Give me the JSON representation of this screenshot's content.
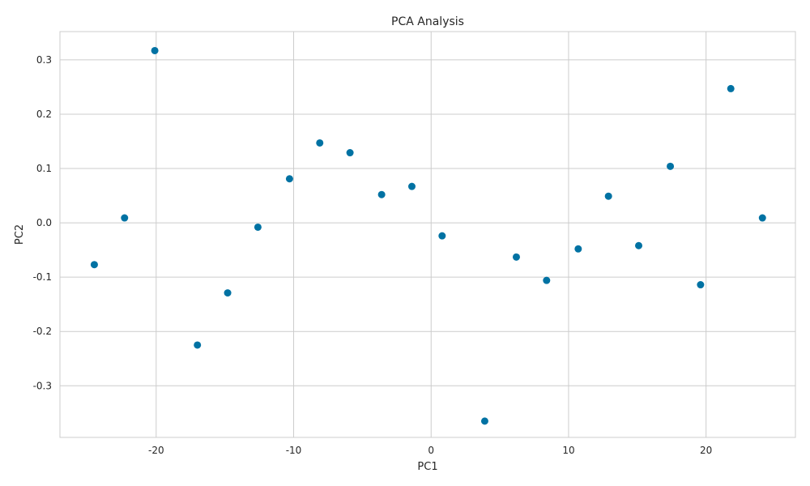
{
  "chart_data": {
    "type": "scatter",
    "title": "PCA Analysis",
    "xlabel": "PC1",
    "ylabel": "PC2",
    "xlim": [
      -27,
      26.5
    ],
    "ylim": [
      -0.395,
      0.352
    ],
    "xticks": [
      -20,
      -10,
      0,
      10,
      20
    ],
    "xtick_labels": [
      "-20",
      "-10",
      "0",
      "10",
      "20"
    ],
    "yticks": [
      -0.3,
      -0.2,
      -0.1,
      0.0,
      0.1,
      0.2,
      0.3
    ],
    "ytick_labels": [
      "-0.3",
      "-0.2",
      "-0.1",
      "0.0",
      "0.1",
      "0.2",
      "0.3"
    ],
    "grid": true,
    "marker_color": "#0072a3",
    "points": [
      {
        "x": -24.5,
        "y": -0.077
      },
      {
        "x": -22.3,
        "y": 0.009
      },
      {
        "x": -20.1,
        "y": 0.317
      },
      {
        "x": -17.0,
        "y": -0.225
      },
      {
        "x": -14.8,
        "y": -0.129
      },
      {
        "x": -12.6,
        "y": -0.008
      },
      {
        "x": -10.3,
        "y": 0.081
      },
      {
        "x": -8.1,
        "y": 0.147
      },
      {
        "x": -5.9,
        "y": 0.129
      },
      {
        "x": -3.6,
        "y": 0.052
      },
      {
        "x": -1.4,
        "y": 0.067
      },
      {
        "x": 0.8,
        "y": -0.024
      },
      {
        "x": 3.9,
        "y": -0.365
      },
      {
        "x": 6.2,
        "y": -0.063
      },
      {
        "x": 8.4,
        "y": -0.106
      },
      {
        "x": 10.7,
        "y": -0.048
      },
      {
        "x": 12.9,
        "y": 0.049
      },
      {
        "x": 15.1,
        "y": -0.042
      },
      {
        "x": 17.4,
        "y": 0.104
      },
      {
        "x": 19.6,
        "y": -0.114
      },
      {
        "x": 21.8,
        "y": 0.247
      },
      {
        "x": 24.1,
        "y": 0.009
      }
    ]
  }
}
